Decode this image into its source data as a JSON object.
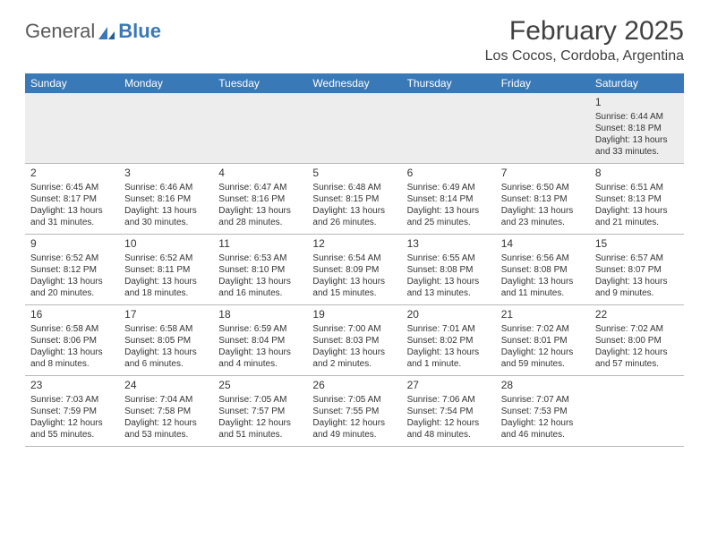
{
  "logo": {
    "general": "General",
    "blue": "Blue"
  },
  "header": {
    "month_title": "February 2025",
    "location": "Los Cocos, Cordoba, Argentina"
  },
  "colors": {
    "header_bar": "#3a79b7",
    "text": "#333333",
    "background": "#ffffff",
    "first_week_bg": "#ededed",
    "divider": "#b8b8b8"
  },
  "weekdays": [
    "Sunday",
    "Monday",
    "Tuesday",
    "Wednesday",
    "Thursday",
    "Friday",
    "Saturday"
  ],
  "weeks": [
    [
      null,
      null,
      null,
      null,
      null,
      null,
      {
        "n": "1",
        "sr": "Sunrise: 6:44 AM",
        "ss": "Sunset: 8:18 PM",
        "d1": "Daylight: 13 hours",
        "d2": "and 33 minutes."
      }
    ],
    [
      {
        "n": "2",
        "sr": "Sunrise: 6:45 AM",
        "ss": "Sunset: 8:17 PM",
        "d1": "Daylight: 13 hours",
        "d2": "and 31 minutes."
      },
      {
        "n": "3",
        "sr": "Sunrise: 6:46 AM",
        "ss": "Sunset: 8:16 PM",
        "d1": "Daylight: 13 hours",
        "d2": "and 30 minutes."
      },
      {
        "n": "4",
        "sr": "Sunrise: 6:47 AM",
        "ss": "Sunset: 8:16 PM",
        "d1": "Daylight: 13 hours",
        "d2": "and 28 minutes."
      },
      {
        "n": "5",
        "sr": "Sunrise: 6:48 AM",
        "ss": "Sunset: 8:15 PM",
        "d1": "Daylight: 13 hours",
        "d2": "and 26 minutes."
      },
      {
        "n": "6",
        "sr": "Sunrise: 6:49 AM",
        "ss": "Sunset: 8:14 PM",
        "d1": "Daylight: 13 hours",
        "d2": "and 25 minutes."
      },
      {
        "n": "7",
        "sr": "Sunrise: 6:50 AM",
        "ss": "Sunset: 8:13 PM",
        "d1": "Daylight: 13 hours",
        "d2": "and 23 minutes."
      },
      {
        "n": "8",
        "sr": "Sunrise: 6:51 AM",
        "ss": "Sunset: 8:13 PM",
        "d1": "Daylight: 13 hours",
        "d2": "and 21 minutes."
      }
    ],
    [
      {
        "n": "9",
        "sr": "Sunrise: 6:52 AM",
        "ss": "Sunset: 8:12 PM",
        "d1": "Daylight: 13 hours",
        "d2": "and 20 minutes."
      },
      {
        "n": "10",
        "sr": "Sunrise: 6:52 AM",
        "ss": "Sunset: 8:11 PM",
        "d1": "Daylight: 13 hours",
        "d2": "and 18 minutes."
      },
      {
        "n": "11",
        "sr": "Sunrise: 6:53 AM",
        "ss": "Sunset: 8:10 PM",
        "d1": "Daylight: 13 hours",
        "d2": "and 16 minutes."
      },
      {
        "n": "12",
        "sr": "Sunrise: 6:54 AM",
        "ss": "Sunset: 8:09 PM",
        "d1": "Daylight: 13 hours",
        "d2": "and 15 minutes."
      },
      {
        "n": "13",
        "sr": "Sunrise: 6:55 AM",
        "ss": "Sunset: 8:08 PM",
        "d1": "Daylight: 13 hours",
        "d2": "and 13 minutes."
      },
      {
        "n": "14",
        "sr": "Sunrise: 6:56 AM",
        "ss": "Sunset: 8:08 PM",
        "d1": "Daylight: 13 hours",
        "d2": "and 11 minutes."
      },
      {
        "n": "15",
        "sr": "Sunrise: 6:57 AM",
        "ss": "Sunset: 8:07 PM",
        "d1": "Daylight: 13 hours",
        "d2": "and 9 minutes."
      }
    ],
    [
      {
        "n": "16",
        "sr": "Sunrise: 6:58 AM",
        "ss": "Sunset: 8:06 PM",
        "d1": "Daylight: 13 hours",
        "d2": "and 8 minutes."
      },
      {
        "n": "17",
        "sr": "Sunrise: 6:58 AM",
        "ss": "Sunset: 8:05 PM",
        "d1": "Daylight: 13 hours",
        "d2": "and 6 minutes."
      },
      {
        "n": "18",
        "sr": "Sunrise: 6:59 AM",
        "ss": "Sunset: 8:04 PM",
        "d1": "Daylight: 13 hours",
        "d2": "and 4 minutes."
      },
      {
        "n": "19",
        "sr": "Sunrise: 7:00 AM",
        "ss": "Sunset: 8:03 PM",
        "d1": "Daylight: 13 hours",
        "d2": "and 2 minutes."
      },
      {
        "n": "20",
        "sr": "Sunrise: 7:01 AM",
        "ss": "Sunset: 8:02 PM",
        "d1": "Daylight: 13 hours",
        "d2": "and 1 minute."
      },
      {
        "n": "21",
        "sr": "Sunrise: 7:02 AM",
        "ss": "Sunset: 8:01 PM",
        "d1": "Daylight: 12 hours",
        "d2": "and 59 minutes."
      },
      {
        "n": "22",
        "sr": "Sunrise: 7:02 AM",
        "ss": "Sunset: 8:00 PM",
        "d1": "Daylight: 12 hours",
        "d2": "and 57 minutes."
      }
    ],
    [
      {
        "n": "23",
        "sr": "Sunrise: 7:03 AM",
        "ss": "Sunset: 7:59 PM",
        "d1": "Daylight: 12 hours",
        "d2": "and 55 minutes."
      },
      {
        "n": "24",
        "sr": "Sunrise: 7:04 AM",
        "ss": "Sunset: 7:58 PM",
        "d1": "Daylight: 12 hours",
        "d2": "and 53 minutes."
      },
      {
        "n": "25",
        "sr": "Sunrise: 7:05 AM",
        "ss": "Sunset: 7:57 PM",
        "d1": "Daylight: 12 hours",
        "d2": "and 51 minutes."
      },
      {
        "n": "26",
        "sr": "Sunrise: 7:05 AM",
        "ss": "Sunset: 7:55 PM",
        "d1": "Daylight: 12 hours",
        "d2": "and 49 minutes."
      },
      {
        "n": "27",
        "sr": "Sunrise: 7:06 AM",
        "ss": "Sunset: 7:54 PM",
        "d1": "Daylight: 12 hours",
        "d2": "and 48 minutes."
      },
      {
        "n": "28",
        "sr": "Sunrise: 7:07 AM",
        "ss": "Sunset: 7:53 PM",
        "d1": "Daylight: 12 hours",
        "d2": "and 46 minutes."
      },
      null
    ]
  ]
}
